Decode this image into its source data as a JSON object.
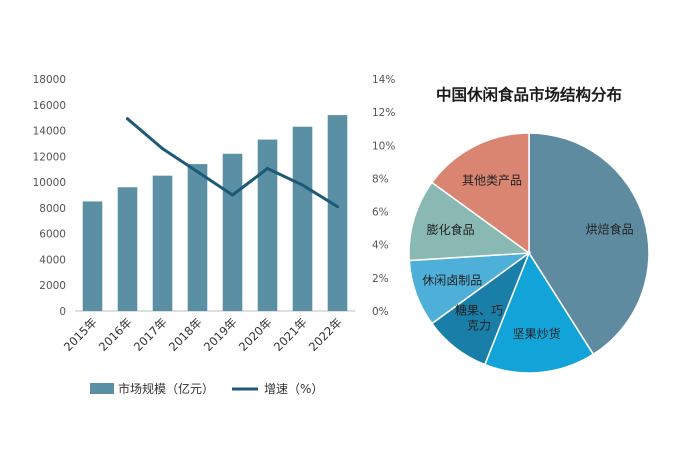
{
  "chart_data": [
    {
      "type": "bar",
      "categories": [
        "2015年",
        "2016年",
        "2017年",
        "2018年",
        "2019年",
        "2020年",
        "2021年",
        "2022年"
      ],
      "series": [
        {
          "name": "市场规模（亿元）",
          "type": "bar",
          "axis": "left",
          "color": "#5b8fa3",
          "values": [
            8500,
            9600,
            10500,
            11400,
            12200,
            13300,
            14300,
            15200
          ]
        },
        {
          "name": "增速（%）",
          "type": "line",
          "axis": "right",
          "color": "#1d5a75",
          "values": [
            null,
            11.6,
            9.8,
            8.4,
            7.0,
            8.6,
            7.6,
            6.3
          ]
        }
      ],
      "ylim_left": [
        0,
        18000
      ],
      "yticks_left": [
        "0",
        "2000",
        "4000",
        "6000",
        "8000",
        "10000",
        "12000",
        "14000",
        "16000",
        "18000"
      ],
      "ylim_right": [
        0,
        14
      ],
      "yticks_right": [
        "0%",
        "2%",
        "4%",
        "6%",
        "8%",
        "10%",
        "12%",
        "14%"
      ],
      "grid": false,
      "legend": {
        "placement": "bottom",
        "items": [
          {
            "label": "市场规模（亿元）",
            "marker": "rect",
            "color": "#5b8fa3"
          },
          {
            "label": "增速（%）",
            "marker": "line",
            "color": "#1d5a75"
          }
        ]
      }
    },
    {
      "type": "pie",
      "title": "中国休闲食品市场结构分布",
      "slices": [
        {
          "label": "烘焙食品",
          "value": 41,
          "color": "#5f8ba0"
        },
        {
          "label": "坚果炒货",
          "value": 15,
          "color": "#12a3d8"
        },
        {
          "label": "糖果、巧克力",
          "label_lines": [
            "糖果、巧",
            "克力"
          ],
          "value": 9,
          "color": "#197ea8"
        },
        {
          "label": "休闲卤制品",
          "value": 9,
          "color": "#4eb0d8"
        },
        {
          "label": "膨化食品",
          "value": 11,
          "color": "#8ab8b2"
        },
        {
          "label": "其他类产品",
          "value": 15,
          "color": "#d98572"
        }
      ]
    }
  ]
}
